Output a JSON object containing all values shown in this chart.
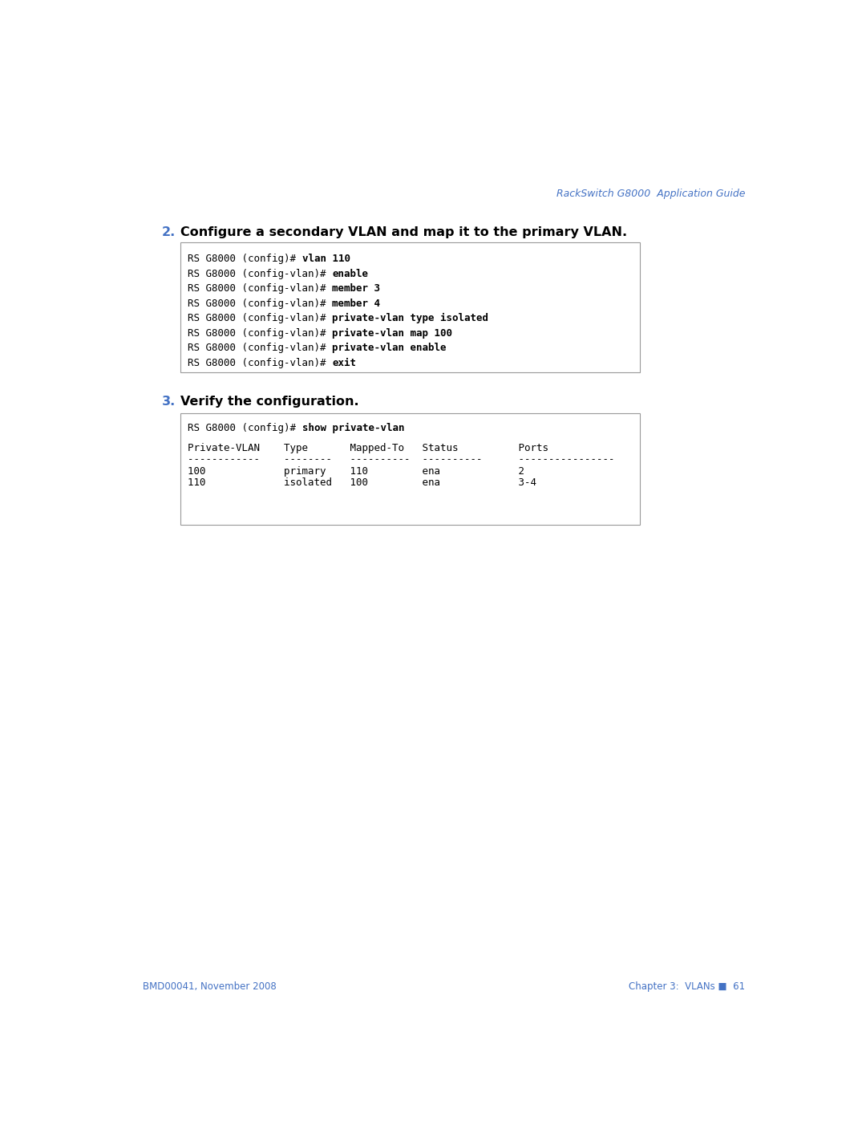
{
  "page_bg": "#ffffff",
  "header_text": "RackSwitch G8000  Application Guide",
  "header_color": "#4472C4",
  "header_fontsize": 9,
  "footer_left": "BMD00041, November 2008",
  "footer_right": "Chapter 3:  VLANs ■  61",
  "footer_color": "#4472C4",
  "footer_fontsize": 8.5,
  "section2_number": "2.",
  "section2_title": "Configure a secondary VLAN and map it to the primary VLAN.",
  "section2_number_color": "#4472C4",
  "section2_title_color": "#000000",
  "section2_fontsize": 11.5,
  "section3_number": "3.",
  "section3_title": "Verify the configuration.",
  "section3_number_color": "#4472C4",
  "section3_fontsize": 11.5,
  "box1_lines_plain": [
    "RS G8000 (config)# ",
    "RS G8000 (config-vlan)# ",
    "RS G8000 (config-vlan)# ",
    "RS G8000 (config-vlan)# ",
    "RS G8000 (config-vlan)# ",
    "RS G8000 (config-vlan)# ",
    "RS G8000 (config-vlan)# ",
    "RS G8000 (config-vlan)# "
  ],
  "box1_lines_bold": [
    "vlan 110",
    "enable",
    "member 3",
    "member 4",
    "private-vlan type isolated",
    "private-vlan map 100",
    "private-vlan enable",
    "exit"
  ],
  "box2_line1_plain": "RS G8000 (config)# ",
  "box2_line1_bold": "show private-vlan",
  "box2_header": "Private-VLAN    Type       Mapped-To   Status          Ports",
  "box2_separator": "------------    --------   ----------  ----------      ----------------",
  "box2_row1_plain": "100             ",
  "box2_row1_rest": "primary    110         ena             2",
  "box2_row2_plain": "110             ",
  "box2_row2_rest": "isolated   100         ena             3-4",
  "mono_fontsize": 9,
  "box_border_color": "#999999",
  "box_bg_color": "#ffffff"
}
